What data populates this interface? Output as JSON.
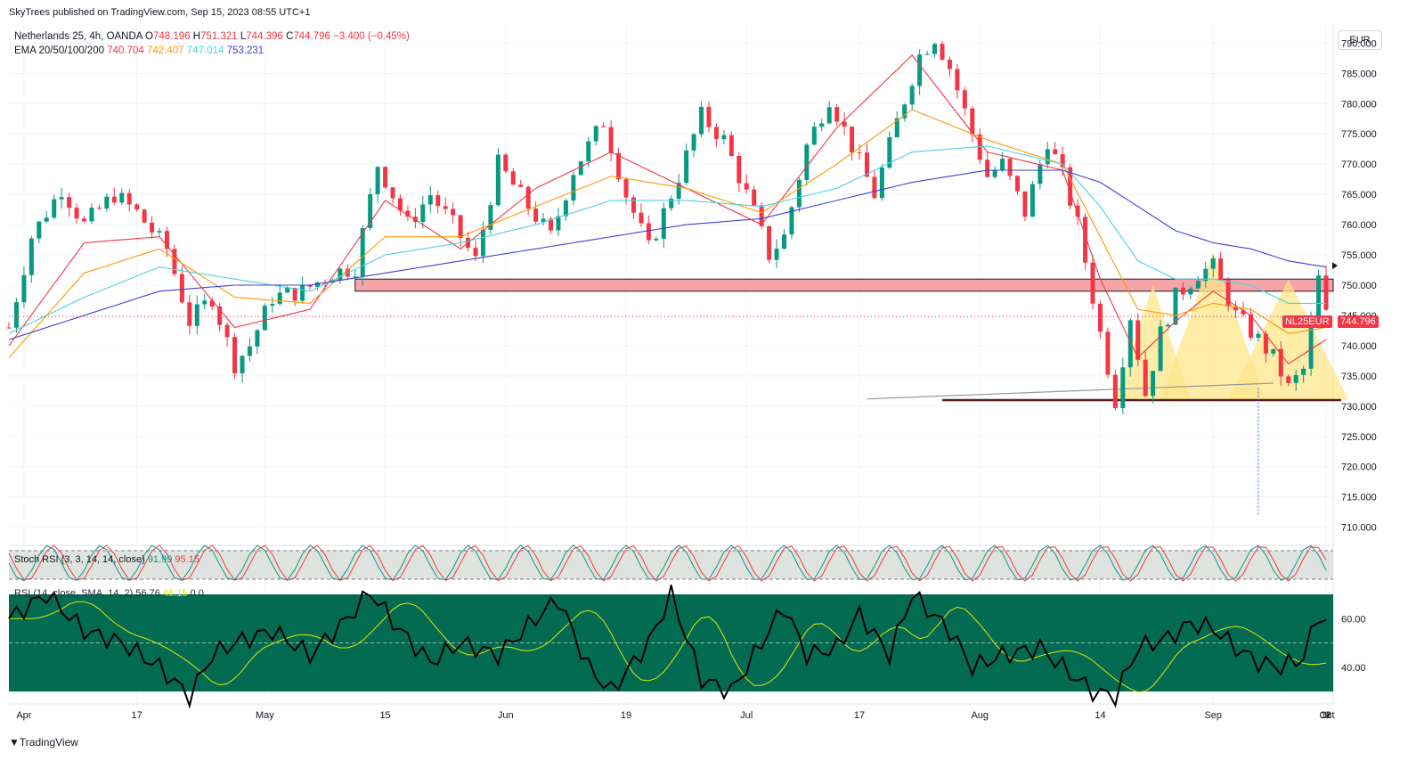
{
  "header": {
    "publisher": "SkyTrees published on TradingView.com, Sep 15, 2023 08:55 UTC+1",
    "symbol": "Netherlands 25, 4h, OANDA",
    "o_label": "O",
    "o": "748.196",
    "h_label": "H",
    "h": "751.321",
    "l_label": "L",
    "l": "744.396",
    "c_label": "C",
    "c": "744.796",
    "change": "−3.400 (−0.45%)",
    "ema_label": "EMA 20/50/100/200",
    "ema20": "740.704",
    "ema50": "742.407",
    "ema100": "747.014",
    "ema200": "753.231"
  },
  "currency": "EUR",
  "footer": {
    "brand": "TradingView"
  },
  "colors": {
    "up": "#089981",
    "down": "#f23645",
    "ema20": "#f23645",
    "ema50": "#ff9800",
    "ema100": "#4dd0e1",
    "ema200": "#3f3fdd",
    "zone": "#f7a4a8",
    "pattern": "#fde68a",
    "rsi_bg": "#036b52",
    "stoch_bg": "#dfe3e0"
  },
  "chart_data": {
    "type": "candlestick",
    "price_axis": {
      "ticks": [
        "790.000",
        "785.000",
        "780.000",
        "775.000",
        "770.000",
        "765.000",
        "760.000",
        "755.000",
        "750.000",
        "745.000",
        "740.000",
        "735.000",
        "730.000",
        "725.000",
        "720.000",
        "715.000",
        "710.000"
      ],
      "range": [
        707,
        793
      ]
    },
    "time_axis": {
      "ticks": [
        "Apr",
        "17",
        "May",
        "15",
        "Jun",
        "19",
        "Jul",
        "17",
        "Aug",
        "14",
        "Sep",
        "18",
        "Oct",
        "9"
      ]
    },
    "last_price": {
      "symbol": "NL25EUR",
      "value": "744.796"
    },
    "close_path": [
      [
        0,
        743
      ],
      [
        3,
        758
      ],
      [
        7,
        766
      ],
      [
        10,
        760
      ],
      [
        14,
        765
      ],
      [
        17,
        762
      ],
      [
        21,
        756
      ],
      [
        24,
        744
      ],
      [
        27,
        748
      ],
      [
        30,
        737
      ],
      [
        32,
        740
      ],
      [
        35,
        748
      ],
      [
        39,
        749
      ],
      [
        43,
        752
      ],
      [
        46,
        753
      ],
      [
        49,
        770
      ],
      [
        53,
        760
      ],
      [
        56,
        765
      ],
      [
        59,
        760
      ],
      [
        62,
        754
      ],
      [
        65,
        770
      ],
      [
        69,
        763
      ],
      [
        72,
        758
      ],
      [
        75,
        769
      ],
      [
        79,
        777
      ],
      [
        82,
        765
      ],
      [
        85,
        756
      ],
      [
        89,
        768
      ],
      [
        92,
        778
      ],
      [
        95,
        774
      ],
      [
        99,
        762
      ],
      [
        101,
        755
      ],
      [
        103,
        758
      ],
      [
        106,
        773
      ],
      [
        109,
        781
      ],
      [
        112,
        773
      ],
      [
        115,
        765
      ],
      [
        118,
        777
      ],
      [
        121,
        788
      ],
      [
        123,
        791
      ],
      [
        125,
        786
      ],
      [
        128,
        775
      ],
      [
        130,
        768
      ],
      [
        132,
        770
      ],
      [
        135,
        762
      ],
      [
        138,
        774
      ],
      [
        140,
        768
      ],
      [
        142,
        760
      ],
      [
        145,
        742
      ],
      [
        147,
        731
      ],
      [
        149,
        745
      ],
      [
        151,
        732
      ],
      [
        153,
        742
      ],
      [
        155,
        748
      ],
      [
        158,
        752
      ],
      [
        160,
        753
      ],
      [
        163,
        745
      ],
      [
        166,
        741
      ],
      [
        168,
        738
      ],
      [
        170,
        733
      ],
      [
        172,
        736
      ],
      [
        174,
        751
      ],
      [
        175,
        745
      ]
    ],
    "ema20": [
      [
        0,
        740
      ],
      [
        10,
        757
      ],
      [
        20,
        758
      ],
      [
        30,
        743
      ],
      [
        40,
        746
      ],
      [
        50,
        764
      ],
      [
        60,
        756
      ],
      [
        70,
        766
      ],
      [
        80,
        772
      ],
      [
        90,
        766
      ],
      [
        100,
        760
      ],
      [
        110,
        776
      ],
      [
        120,
        788
      ],
      [
        130,
        772
      ],
      [
        140,
        769
      ],
      [
        145,
        751
      ],
      [
        150,
        738
      ],
      [
        155,
        744
      ],
      [
        160,
        749
      ],
      [
        165,
        745
      ],
      [
        170,
        737
      ],
      [
        175,
        741
      ]
    ],
    "ema50": [
      [
        0,
        738
      ],
      [
        10,
        752
      ],
      [
        20,
        756
      ],
      [
        30,
        748
      ],
      [
        40,
        747
      ],
      [
        50,
        758
      ],
      [
        60,
        758
      ],
      [
        70,
        763
      ],
      [
        80,
        768
      ],
      [
        90,
        766
      ],
      [
        100,
        762
      ],
      [
        110,
        770
      ],
      [
        120,
        779
      ],
      [
        130,
        774
      ],
      [
        140,
        770
      ],
      [
        145,
        758
      ],
      [
        150,
        746
      ],
      [
        155,
        745
      ],
      [
        160,
        747
      ],
      [
        165,
        746
      ],
      [
        170,
        742
      ],
      [
        175,
        743
      ]
    ],
    "ema100": [
      [
        0,
        742
      ],
      [
        10,
        748
      ],
      [
        20,
        753
      ],
      [
        30,
        751
      ],
      [
        40,
        749
      ],
      [
        50,
        755
      ],
      [
        60,
        757
      ],
      [
        70,
        760
      ],
      [
        80,
        764
      ],
      [
        90,
        764
      ],
      [
        100,
        763
      ],
      [
        110,
        766
      ],
      [
        120,
        772
      ],
      [
        130,
        773
      ],
      [
        140,
        770
      ],
      [
        145,
        763
      ],
      [
        150,
        754
      ],
      [
        155,
        751
      ],
      [
        160,
        751
      ],
      [
        165,
        750
      ],
      [
        170,
        747
      ],
      [
        175,
        747
      ]
    ],
    "ema200": [
      [
        0,
        741
      ],
      [
        10,
        745
      ],
      [
        20,
        749
      ],
      [
        30,
        750
      ],
      [
        40,
        750
      ],
      [
        50,
        752
      ],
      [
        60,
        754
      ],
      [
        70,
        756
      ],
      [
        80,
        758
      ],
      [
        90,
        760
      ],
      [
        100,
        761
      ],
      [
        110,
        764
      ],
      [
        120,
        767
      ],
      [
        130,
        769
      ],
      [
        140,
        769
      ],
      [
        145,
        767
      ],
      [
        150,
        763
      ],
      [
        155,
        759
      ],
      [
        160,
        757
      ],
      [
        165,
        756
      ],
      [
        170,
        754
      ],
      [
        175,
        753
      ]
    ],
    "annotations": {
      "resistance_zone": [
        749,
        751
      ],
      "support_line": 731,
      "neckline": [
        [
          124,
          731
        ],
        [
          163,
          734
        ]
      ],
      "pattern": "inverse head and shoulders",
      "projection_low": 712
    },
    "stoch_rsi": {
      "label": "Stoch RSI (3, 3, 14, 14, close)",
      "k": "91.99",
      "d": "95.15"
    },
    "rsi": {
      "label": "RSI (14, close, SMA, 14, 2)",
      "value": "56.76",
      "ma": "46.15",
      "extra": "0 0",
      "ticks": [
        "60.00",
        "40.00"
      ],
      "values": [
        [
          0,
          60
        ],
        [
          5,
          70
        ],
        [
          10,
          55
        ],
        [
          15,
          50
        ],
        [
          20,
          40
        ],
        [
          24,
          28
        ],
        [
          27,
          45
        ],
        [
          30,
          50
        ],
        [
          35,
          55
        ],
        [
          40,
          45
        ],
        [
          45,
          60
        ],
        [
          48,
          71
        ],
        [
          52,
          55
        ],
        [
          56,
          42
        ],
        [
          60,
          50
        ],
        [
          65,
          45
        ],
        [
          70,
          60
        ],
        [
          73,
          68
        ],
        [
          77,
          40
        ],
        [
          80,
          30
        ],
        [
          85,
          50
        ],
        [
          88,
          70
        ],
        [
          92,
          35
        ],
        [
          96,
          30
        ],
        [
          100,
          50
        ],
        [
          103,
          65
        ],
        [
          106,
          45
        ],
        [
          110,
          48
        ],
        [
          113,
          62
        ],
        [
          117,
          45
        ],
        [
          120,
          70
        ],
        [
          125,
          55
        ],
        [
          128,
          40
        ],
        [
          132,
          45
        ],
        [
          137,
          48
        ],
        [
          140,
          40
        ],
        [
          144,
          30
        ],
        [
          147,
          28
        ],
        [
          150,
          48
        ],
        [
          154,
          52
        ],
        [
          157,
          58
        ],
        [
          160,
          56
        ],
        [
          163,
          48
        ],
        [
          166,
          42
        ],
        [
          169,
          40
        ],
        [
          172,
          44
        ],
        [
          174,
          62
        ],
        [
          175,
          58
        ]
      ]
    }
  }
}
